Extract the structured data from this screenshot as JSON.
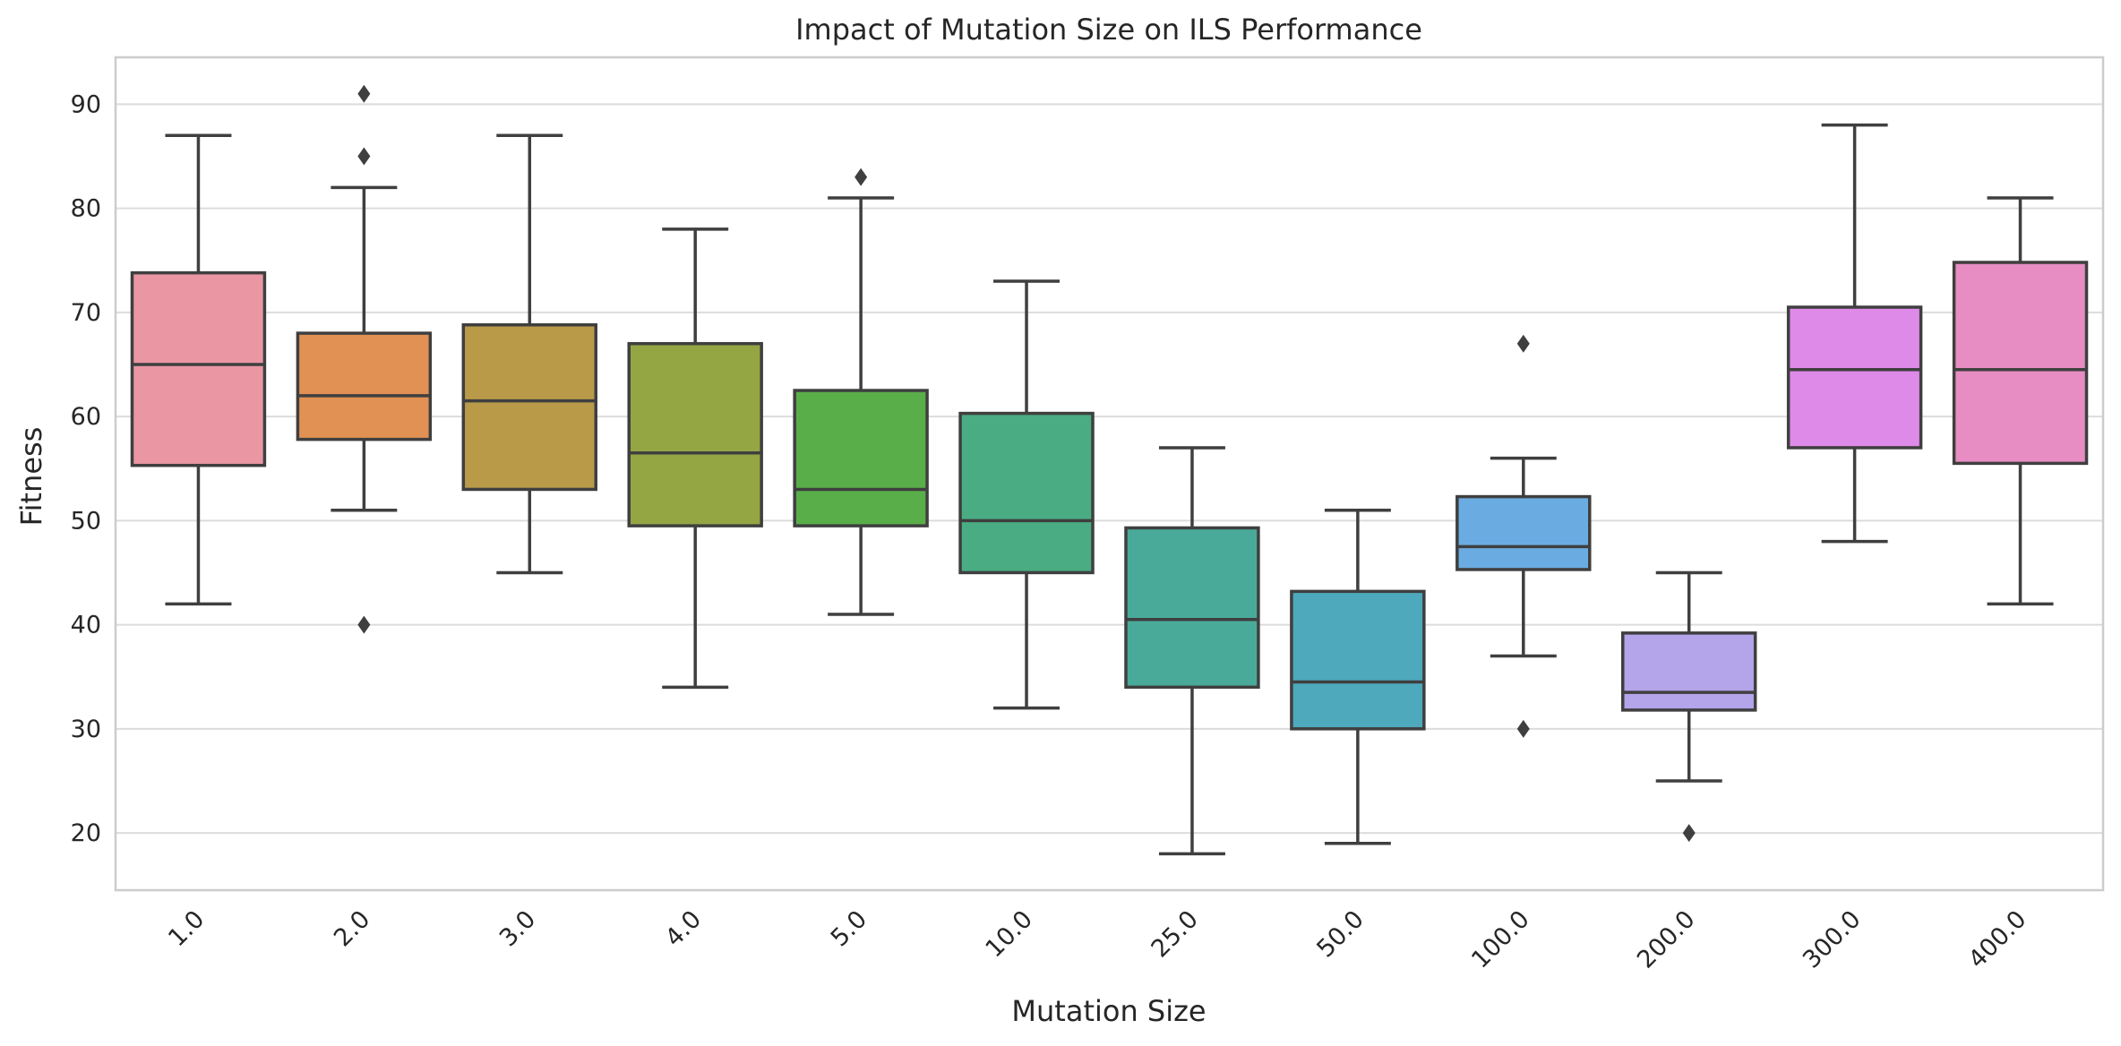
{
  "chart_data": {
    "type": "box",
    "title": "Impact of Mutation Size on ILS Performance",
    "xlabel": "Mutation Size",
    "ylabel": "Fitness",
    "ylim": [
      14.5,
      94.5
    ],
    "yticks": [
      20,
      30,
      40,
      50,
      60,
      70,
      80,
      90
    ],
    "grid": true,
    "legend": "none",
    "categories": [
      "1.0",
      "2.0",
      "3.0",
      "4.0",
      "5.0",
      "10.0",
      "25.0",
      "50.0",
      "100.0",
      "200.0",
      "300.0",
      "400.0"
    ],
    "boxes": [
      {
        "category": "1.0",
        "whisker_low": 42,
        "q1": 55.3,
        "median": 65,
        "q3": 73.8,
        "whisker_high": 87,
        "outliers": [],
        "color": "#ea96a3"
      },
      {
        "category": "2.0",
        "whisker_low": 51,
        "q1": 57.8,
        "median": 62,
        "q3": 68,
        "whisker_high": 82,
        "outliers": [
          40,
          85,
          91
        ],
        "color": "#e19153"
      },
      {
        "category": "3.0",
        "whisker_low": 45,
        "q1": 53,
        "median": 61.5,
        "q3": 68.8,
        "whisker_high": 87,
        "outliers": [],
        "color": "#b89a49"
      },
      {
        "category": "4.0",
        "whisker_low": 34,
        "q1": 49.5,
        "median": 56.5,
        "q3": 67,
        "whisker_high": 78,
        "outliers": [],
        "color": "#94a544"
      },
      {
        "category": "5.0",
        "whisker_low": 41,
        "q1": 49.5,
        "median": 53,
        "q3": 62.5,
        "whisker_high": 81,
        "outliers": [
          83
        ],
        "color": "#5aae4a"
      },
      {
        "category": "10.0",
        "whisker_low": 32,
        "q1": 45,
        "median": 50,
        "q3": 60.3,
        "whisker_high": 73,
        "outliers": [],
        "color": "#4aac83"
      },
      {
        "category": "25.0",
        "whisker_low": 18,
        "q1": 34,
        "median": 40.5,
        "q3": 49.3,
        "whisker_high": 57,
        "outliers": [],
        "color": "#4aaa9a"
      },
      {
        "category": "50.0",
        "whisker_low": 19,
        "q1": 30,
        "median": 34.5,
        "q3": 43.2,
        "whisker_high": 51,
        "outliers": [],
        "color": "#4da9bb"
      },
      {
        "category": "100.0",
        "whisker_low": 37,
        "q1": 45.3,
        "median": 47.5,
        "q3": 52.3,
        "whisker_high": 56,
        "outliers": [
          30,
          67
        ],
        "color": "#6aace2"
      },
      {
        "category": "200.0",
        "whisker_low": 25,
        "q1": 31.8,
        "median": 33.5,
        "q3": 39.2,
        "whisker_high": 45,
        "outliers": [
          20
        ],
        "color": "#b4a4ea"
      },
      {
        "category": "300.0",
        "whisker_low": 48,
        "q1": 57,
        "median": 64.5,
        "q3": 70.5,
        "whisker_high": 88,
        "outliers": [],
        "color": "#de8ae8"
      },
      {
        "category": "400.0",
        "whisker_low": 42,
        "q1": 55.5,
        "median": 64.5,
        "q3": 74.8,
        "whisker_high": 81,
        "outliers": [],
        "color": "#e78dc3"
      }
    ]
  }
}
